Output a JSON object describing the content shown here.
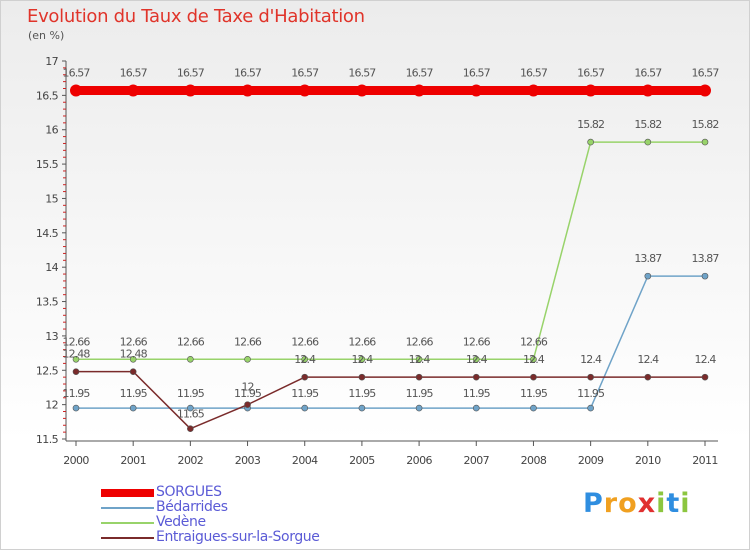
{
  "title": "Evolution du Taux de Taxe d'Habitation",
  "unit": "(en %)",
  "brand": {
    "letters": [
      "P",
      "r",
      "o",
      "x",
      "i",
      "t",
      "i"
    ],
    "colors": [
      "#2f8ee0",
      "#f0a020",
      "#f0a020",
      "#e03030",
      "#8cc63f",
      "#2f8ee0",
      "#8cc63f"
    ]
  },
  "chart_data": {
    "type": "line",
    "x": [
      "2000",
      "2001",
      "2002",
      "2003",
      "2004",
      "2005",
      "2006",
      "2007",
      "2008",
      "2009",
      "2010",
      "2011"
    ],
    "ylim": [
      11.5,
      17
    ],
    "yticks": [
      "11.5",
      "12",
      "12.5",
      "13",
      "13.5",
      "14",
      "14.5",
      "15",
      "15.5",
      "16",
      "16.5",
      "17"
    ],
    "grid": false,
    "legend_position": "bottom-left",
    "series": [
      {
        "name": "SORGUES",
        "color": "#ee0000",
        "width": 9,
        "values": [
          16.57,
          16.57,
          16.57,
          16.57,
          16.57,
          16.57,
          16.57,
          16.57,
          16.57,
          16.57,
          16.57,
          16.57
        ],
        "labels": [
          "16.57",
          "16.57",
          "16.57",
          "16.57",
          "16.57",
          "16.57",
          "16.57",
          "16.57",
          "16.57",
          "16.57",
          "16.57",
          "16.57"
        ]
      },
      {
        "name": "Bédarrides",
        "color": "#6fa3c8",
        "width": 1.5,
        "values": [
          11.95,
          11.95,
          11.95,
          11.95,
          11.95,
          11.95,
          11.95,
          11.95,
          11.95,
          11.95,
          13.87,
          13.87
        ],
        "labels": [
          "11.95",
          "11.95",
          "11.95",
          "11.95",
          "11.95",
          "11.95",
          "11.95",
          "11.95",
          "11.95",
          "11.95",
          "13.87",
          "13.87"
        ]
      },
      {
        "name": "Vedène",
        "color": "#98d36a",
        "width": 1.5,
        "values": [
          12.66,
          12.66,
          12.66,
          12.66,
          12.66,
          12.66,
          12.66,
          12.66,
          12.66,
          15.82,
          15.82,
          15.82
        ],
        "labels": [
          "12.66",
          "12.66",
          "12.66",
          "12.66",
          "12.66",
          "12.66",
          "12.66",
          "12.66",
          "12.66",
          "15.82",
          "15.82",
          "15.82"
        ]
      },
      {
        "name": "Entraigues-sur-la-Sorgue",
        "color": "#7a2b2b",
        "width": 1.5,
        "values": [
          12.48,
          12.48,
          11.65,
          12,
          12.4,
          12.4,
          12.4,
          12.4,
          12.4,
          12.4,
          12.4,
          12.4
        ],
        "labels": [
          "12.48",
          "12.48",
          "11.65",
          "12",
          "12.4",
          "12.4",
          "12.4",
          "12.4",
          "12.4",
          "12.4",
          "12.4",
          "12.4"
        ]
      }
    ]
  }
}
